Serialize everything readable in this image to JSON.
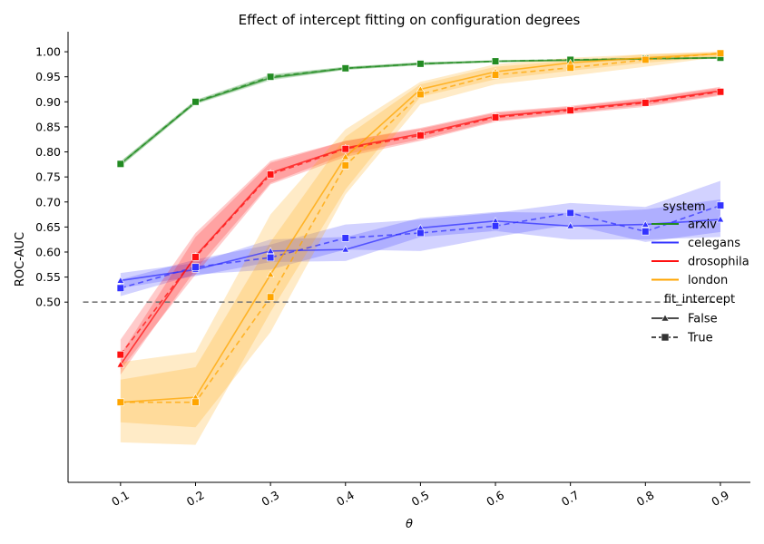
{
  "chart_data": {
    "type": "line",
    "title": "Effect of intercept fitting on configuration degrees",
    "xlabel": "θ",
    "ylabel": "ROC-AUC",
    "x": [
      0.1,
      0.2,
      0.3,
      0.4,
      0.5,
      0.6,
      0.7,
      0.8,
      0.9
    ],
    "xlim": [
      0.03,
      0.94
    ],
    "ylim": [
      0.14,
      1.04
    ],
    "yticks": [
      0.5,
      0.55,
      0.6,
      0.65,
      0.7,
      0.75,
      0.8,
      0.85,
      0.9,
      0.95,
      1.0
    ],
    "ytick_labels": [
      "0.50",
      "0.55",
      "0.60",
      "0.65",
      "0.70",
      "0.75",
      "0.80",
      "0.85",
      "0.90",
      "0.95",
      "1.00"
    ],
    "xtick_labels": [
      "0.1",
      "0.2",
      "0.3",
      "0.4",
      "0.5",
      "0.6",
      "0.7",
      "0.8",
      "0.9"
    ],
    "reference_line": {
      "y": 0.5,
      "x_range": [
        0.05,
        0.9
      ],
      "style": "dashed",
      "color": "#777777"
    },
    "series": [
      {
        "system": "arxiv",
        "fit_intercept": "False",
        "color": "#228B22",
        "marker": "triangle",
        "dash": "solid",
        "values": [
          0.776,
          0.899,
          0.948,
          0.967,
          0.976,
          0.981,
          0.983,
          0.986,
          0.988
        ],
        "ci_low": [
          0.771,
          0.895,
          0.943,
          0.964,
          0.973,
          0.979,
          0.981,
          0.984,
          0.986
        ],
        "ci_high": [
          0.781,
          0.903,
          0.953,
          0.97,
          0.979,
          0.983,
          0.985,
          0.988,
          0.99
        ]
      },
      {
        "system": "arxiv",
        "fit_intercept": "True",
        "color": "#228B22",
        "marker": "square",
        "dash": "dashed",
        "values": [
          0.776,
          0.9,
          0.95,
          0.967,
          0.976,
          0.981,
          0.984,
          0.986,
          0.988
        ],
        "ci_low": [
          0.771,
          0.896,
          0.945,
          0.964,
          0.973,
          0.979,
          0.982,
          0.984,
          0.986
        ],
        "ci_high": [
          0.781,
          0.904,
          0.955,
          0.97,
          0.979,
          0.983,
          0.986,
          0.988,
          0.99
        ]
      },
      {
        "system": "celegans",
        "fit_intercept": "False",
        "color": "#3333ff",
        "marker": "triangle",
        "dash": "solid",
        "values": [
          0.543,
          0.565,
          0.602,
          0.605,
          0.648,
          0.662,
          0.652,
          0.655,
          0.665
        ],
        "ci_low": [
          0.528,
          0.552,
          0.58,
          0.582,
          0.63,
          0.642,
          0.625,
          0.625,
          0.63
        ],
        "ci_high": [
          0.558,
          0.578,
          0.625,
          0.63,
          0.668,
          0.68,
          0.678,
          0.685,
          0.705
        ]
      },
      {
        "system": "celegans",
        "fit_intercept": "True",
        "color": "#3333ff",
        "marker": "square",
        "dash": "dashed",
        "values": [
          0.528,
          0.57,
          0.589,
          0.628,
          0.638,
          0.652,
          0.678,
          0.641,
          0.693
        ],
        "ci_low": [
          0.512,
          0.555,
          0.565,
          0.605,
          0.602,
          0.63,
          0.655,
          0.62,
          0.64
        ],
        "ci_high": [
          0.545,
          0.585,
          0.615,
          0.655,
          0.665,
          0.678,
          0.698,
          0.69,
          0.742
        ]
      },
      {
        "system": "drosophila",
        "fit_intercept": "False",
        "color": "#ff1111",
        "marker": "triangle",
        "dash": "solid",
        "values": [
          0.375,
          0.592,
          0.758,
          0.808,
          0.836,
          0.871,
          0.885,
          0.9,
          0.922
        ],
        "ci_low": [
          0.355,
          0.565,
          0.738,
          0.795,
          0.825,
          0.862,
          0.878,
          0.893,
          0.914
        ],
        "ci_high": [
          0.395,
          0.63,
          0.778,
          0.822,
          0.848,
          0.88,
          0.892,
          0.908,
          0.93
        ]
      },
      {
        "system": "drosophila",
        "fit_intercept": "True",
        "color": "#ff1111",
        "marker": "square",
        "dash": "dashed",
        "values": [
          0.395,
          0.59,
          0.755,
          0.806,
          0.833,
          0.869,
          0.883,
          0.898,
          0.92
        ],
        "ci_low": [
          0.365,
          0.555,
          0.735,
          0.79,
          0.822,
          0.86,
          0.876,
          0.89,
          0.912
        ],
        "ci_high": [
          0.425,
          0.638,
          0.782,
          0.822,
          0.846,
          0.878,
          0.89,
          0.906,
          0.928
        ]
      },
      {
        "system": "london",
        "fit_intercept": "False",
        "color": "#FFA500",
        "marker": "triangle",
        "dash": "solid",
        "values": [
          0.3,
          0.31,
          0.555,
          0.79,
          0.925,
          0.96,
          0.978,
          0.988,
          0.996
        ],
        "ci_low": [
          0.22,
          0.215,
          0.48,
          0.725,
          0.91,
          0.945,
          0.962,
          0.978,
          0.99
        ],
        "ci_high": [
          0.38,
          0.4,
          0.675,
          0.845,
          0.94,
          0.975,
          0.988,
          0.995,
          1.0
        ]
      },
      {
        "system": "london",
        "fit_intercept": "True",
        "color": "#FFA500",
        "marker": "square",
        "dash": "dashed",
        "values": [
          0.3,
          0.3,
          0.51,
          0.773,
          0.915,
          0.954,
          0.968,
          0.984,
          0.997
        ],
        "ci_low": [
          0.26,
          0.25,
          0.44,
          0.715,
          0.895,
          0.935,
          0.952,
          0.97,
          0.99
        ],
        "ci_high": [
          0.345,
          0.37,
          0.62,
          0.83,
          0.935,
          0.97,
          0.982,
          0.995,
          1.0
        ]
      }
    ],
    "legend": {
      "placement": "center-right",
      "system_title": "system",
      "system_items": [
        {
          "label": "arxiv",
          "color": "#228B22"
        },
        {
          "label": "celegans",
          "color": "#3333ff"
        },
        {
          "label": "drosophila",
          "color": "#ff1111"
        },
        {
          "label": "london",
          "color": "#FFA500"
        }
      ],
      "fit_title": "fit_intercept",
      "fit_items": [
        {
          "label": "False",
          "marker": "triangle",
          "dash": "solid"
        },
        {
          "label": "True",
          "marker": "square",
          "dash": "dashed"
        }
      ]
    }
  }
}
